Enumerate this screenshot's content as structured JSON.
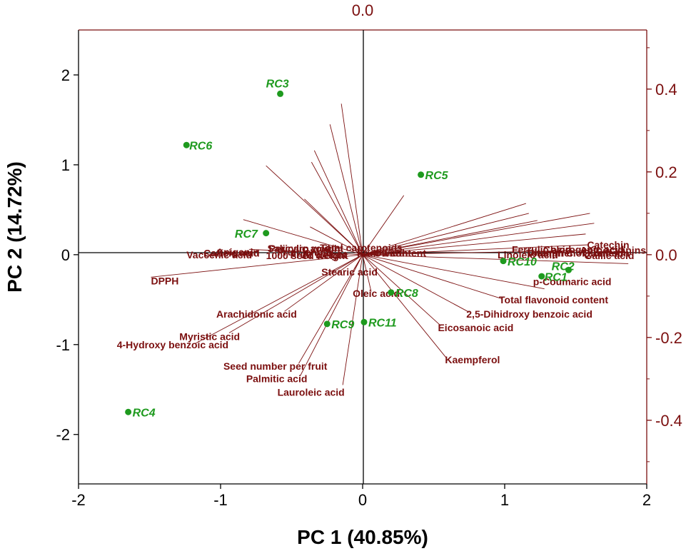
{
  "chart_data": {
    "type": "scatter",
    "subtype": "pca-biplot",
    "top_label": "0.0",
    "xlabel": "PC 1 (40.85%)",
    "ylabel": "PC 2 (14.72%)",
    "xlim": [
      -2,
      2
    ],
    "ylim": [
      -2.55,
      2.5
    ],
    "xticks": [
      -2,
      -1,
      0,
      1,
      2
    ],
    "xtick_labels": [
      "-2",
      "-1",
      "0",
      "1",
      "2"
    ],
    "yticks": [
      -2,
      -1,
      0,
      1,
      2
    ],
    "ytick_labels": [
      "-2",
      "-1",
      "0",
      "1",
      "2"
    ],
    "y2ticks": [
      0.4,
      0.2,
      0.0,
      -0.2,
      -0.4
    ],
    "y2tick_labels": [
      "0.4",
      "0.2",
      "0.0",
      "-0.2",
      "-0.4"
    ],
    "colors": {
      "loadings": "#7b0f0f",
      "scores": "#1e9a1e",
      "axes": "#000000"
    },
    "scores": [
      {
        "name": "RC1",
        "x": 1.26,
        "y": -0.24
      },
      {
        "name": "RC2",
        "x": 1.45,
        "y": -0.17
      },
      {
        "name": "RC3",
        "x": -0.58,
        "y": 1.79
      },
      {
        "name": "RC4",
        "x": -1.65,
        "y": -1.75
      },
      {
        "name": "RC5",
        "x": 0.41,
        "y": 0.89
      },
      {
        "name": "RC6",
        "x": -1.24,
        "y": 1.22
      },
      {
        "name": "RC7",
        "x": -0.68,
        "y": 0.24
      },
      {
        "name": "RC8",
        "x": 0.2,
        "y": -0.42
      },
      {
        "name": "RC9",
        "x": -0.25,
        "y": -0.77
      },
      {
        "name": "RC10",
        "x": 0.99,
        "y": -0.07
      },
      {
        "name": "RC11",
        "x": 0.01,
        "y": -0.75
      }
    ],
    "loadings": [
      {
        "name": "Total carotenoids",
        "x": -0.15,
        "y": 1.68
      },
      {
        "name": "1000 seed weight",
        "x": -0.23,
        "y": 1.45
      },
      {
        "name": "Salicylic acid",
        "x": -0.34,
        "y": 1.16
      },
      {
        "name": "Pericarp weight",
        "x": -0.36,
        "y": 1.03
      },
      {
        "name": "Vaccenic acid",
        "x": -0.68,
        "y": 0.99
      },
      {
        "name": "Fruit length",
        "x": -0.41,
        "y": 0.62
      },
      {
        "name": "Oil content",
        "x": 0.29,
        "y": 0.66
      },
      {
        "name": "Apigenin",
        "x": -0.84,
        "y": 0.39
      },
      {
        "name": "Fruit weight",
        "x": -0.37,
        "y": 0.31
      },
      {
        "name": "Caffeic acid",
        "x": -0.8,
        "y": 0.06
      },
      {
        "name": "Fruit width",
        "x": 0.04,
        "y": 0.06
      },
      {
        "name": "DPPH",
        "x": -1.49,
        "y": -0.25
      },
      {
        "name": "Ferrulic acid",
        "x": 1.15,
        "y": 0.57
      },
      {
        "name": "Linoleic acid",
        "x": 1.17,
        "y": 0.46
      },
      {
        "name": "Catechin",
        "x": 1.6,
        "y": 0.46
      },
      {
        "name": "Vitamin C",
        "x": 1.23,
        "y": 0.38
      },
      {
        "name": "Quercetin",
        "x": 1.63,
        "y": 0.35
      },
      {
        "name": "Total phenol content",
        "x": 1.57,
        "y": 0.23
      },
      {
        "name": "Chlorogenic acid",
        "x": 1.59,
        "y": 0.11
      },
      {
        "name": "Anthocyanins",
        "x": 1.64,
        "y": 0.05
      },
      {
        "name": "Gallic acid",
        "x": 1.87,
        "y": -0.1
      },
      {
        "name": "p-Coumaric acid",
        "x": 1.28,
        "y": -0.38
      },
      {
        "name": "Total flavonoid content",
        "x": 0.98,
        "y": -0.49
      },
      {
        "name": "2,5-Dihidroxy benzoic acid",
        "x": 0.75,
        "y": -0.64
      },
      {
        "name": "Eicosanoic acid",
        "x": 0.55,
        "y": -0.79
      },
      {
        "name": "Kaempferol",
        "x": 0.59,
        "y": -1.15
      },
      {
        "name": "Stearic acid",
        "x": -0.06,
        "y": -0.16
      },
      {
        "name": "Oleic acid",
        "x": 0.06,
        "y": -0.41
      },
      {
        "name": "Arachidonic acid",
        "x": -0.55,
        "y": -0.63
      },
      {
        "name": "Myristic acid",
        "x": -0.94,
        "y": -0.87
      },
      {
        "name": "4-Hydroxy benzoic acid",
        "x": -1.18,
        "y": -0.99
      },
      {
        "name": "Seed number per fruit",
        "x": -0.45,
        "y": -1.21
      },
      {
        "name": "Palmitic acid",
        "x": -0.44,
        "y": -1.35
      },
      {
        "name": "Lauroleic acid",
        "x": -0.14,
        "y": -1.45
      }
    ]
  }
}
